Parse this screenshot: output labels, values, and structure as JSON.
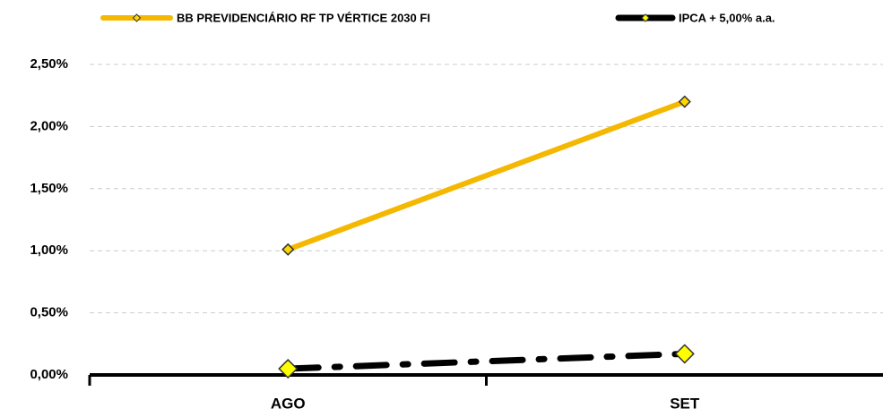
{
  "chart_data": {
    "type": "line",
    "categories": [
      "AGO",
      "SET"
    ],
    "series": [
      {
        "name": "BB PREVIDENCIÁRIO RF TP VÉRTICE 2030 FI",
        "color": "#f5b800",
        "marker_color": "#ffd700",
        "line_style": "solid",
        "values": [
          1.01,
          2.2
        ]
      },
      {
        "name": "IPCA + 5,00% a.a.",
        "color": "#000000",
        "marker_color": "#ffff00",
        "line_style": "dashdot",
        "values": [
          0.05,
          0.17
        ]
      }
    ],
    "ylim": [
      0,
      2.5
    ],
    "yticks": [
      {
        "value": 0,
        "label": "0,00%"
      },
      {
        "value": 0.5,
        "label": "0,50%"
      },
      {
        "value": 1,
        "label": "1,00%"
      },
      {
        "value": 1.5,
        "label": "1,50%"
      },
      {
        "value": 2,
        "label": "2,00%"
      },
      {
        "value": 2.5,
        "label": "2,50%"
      }
    ],
    "grid": true,
    "legend": "top"
  }
}
